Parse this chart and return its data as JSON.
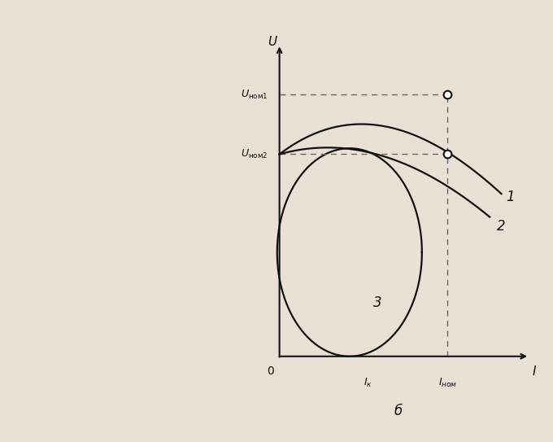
{
  "title": "б",
  "Ik": 0.38,
  "Inom": 0.72,
  "Unom1": 0.88,
  "Unom2": 0.68,
  "bg_color": "#e8e0d4",
  "line_color": "#111111",
  "dashed_color": "#666666",
  "label_1": "1",
  "label_2": "2",
  "label_3": "3",
  "ylabel_text": "U",
  "xlabel_text": "I",
  "origin_text": "0",
  "Ik_text": "I_к",
  "Inom_text": "I_ном",
  "Unom1_text": "U_ном1",
  "Unom2_text": "U_ном2"
}
